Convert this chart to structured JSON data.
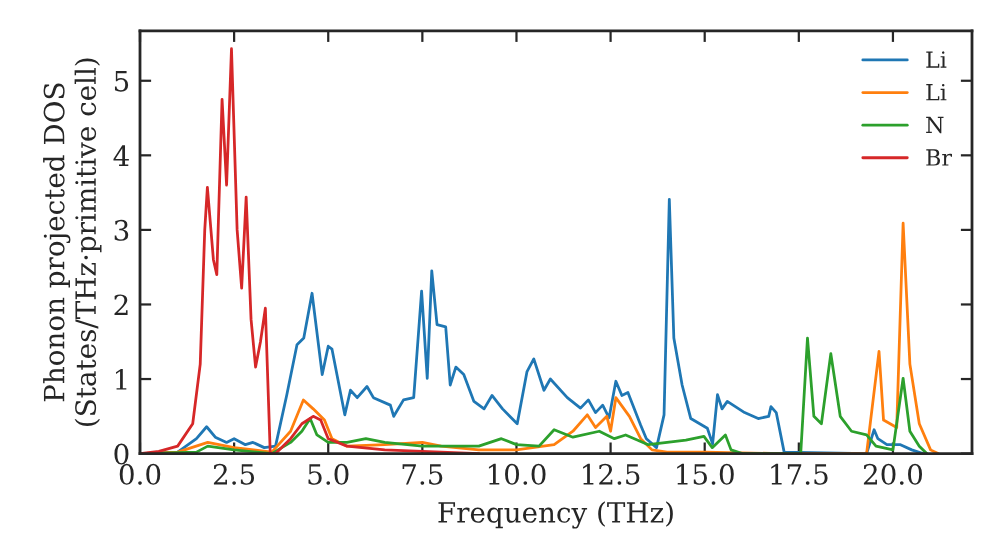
{
  "chart_data": {
    "type": "line",
    "xlabel": "Frequency (THz)",
    "ylabel": "Phonon projected DOS\n(States/THz·primitive cell)",
    "xlim": [
      0,
      22.1
    ],
    "ylim": [
      0,
      5.67
    ],
    "xticks": [
      {
        "value": 0,
        "label": "0.0"
      },
      {
        "value": 2.5,
        "label": "2.5"
      },
      {
        "value": 5,
        "label": "5.0"
      },
      {
        "value": 7.5,
        "label": "7.5"
      },
      {
        "value": 10,
        "label": "10.0"
      },
      {
        "value": 12.5,
        "label": "12.5"
      },
      {
        "value": 15,
        "label": "15.0"
      },
      {
        "value": 17.5,
        "label": "17.5"
      },
      {
        "value": 20,
        "label": "20.0"
      }
    ],
    "yticks": [
      0,
      1,
      2,
      3,
      4,
      5
    ],
    "grid": false,
    "legend": "top right",
    "series": [
      {
        "name": "Li",
        "color": "#1f77b4",
        "x": [
          0,
          1.0,
          1.5,
          1.77,
          2.0,
          2.3,
          2.5,
          2.8,
          3.0,
          3.3,
          3.6,
          3.9,
          4.17,
          4.35,
          4.57,
          4.84,
          5.0,
          5.1,
          5.44,
          5.59,
          5.77,
          6.03,
          6.2,
          6.65,
          6.74,
          7.0,
          7.27,
          7.48,
          7.63,
          7.75,
          7.89,
          8.12,
          8.24,
          8.39,
          8.6,
          8.87,
          9.14,
          9.35,
          9.63,
          10.02,
          10.28,
          10.46,
          10.73,
          10.9,
          11.35,
          11.7,
          11.91,
          12.1,
          12.29,
          12.46,
          12.64,
          12.8,
          12.96,
          13.3,
          13.45,
          13.72,
          13.92,
          14.06,
          14.18,
          14.4,
          14.63,
          15.07,
          15.21,
          15.34,
          15.46,
          15.6,
          16.06,
          16.42,
          16.7,
          16.76,
          16.9,
          17.11,
          19.3,
          19.5,
          19.6,
          19.84,
          20.2,
          20.5,
          20.8
        ],
        "values": [
          0,
          0.02,
          0.2,
          0.36,
          0.22,
          0.15,
          0.2,
          0.12,
          0.15,
          0.08,
          0.1,
          0.79,
          1.46,
          1.55,
          2.15,
          1.06,
          1.44,
          1.4,
          0.52,
          0.85,
          0.75,
          0.9,
          0.75,
          0.65,
          0.5,
          0.72,
          0.75,
          2.18,
          1.01,
          2.45,
          1.73,
          1.7,
          0.92,
          1.16,
          1.06,
          0.7,
          0.6,
          0.78,
          0.6,
          0.4,
          1.1,
          1.27,
          0.85,
          1.0,
          0.75,
          0.61,
          0.72,
          0.55,
          0.65,
          0.48,
          0.97,
          0.78,
          0.82,
          0.38,
          0.2,
          0.08,
          0.52,
          3.41,
          1.55,
          0.92,
          0.47,
          0.34,
          0.13,
          0.79,
          0.6,
          0.7,
          0.55,
          0.47,
          0.5,
          0.63,
          0.55,
          0.02,
          0,
          0.32,
          0.2,
          0.12,
          0.12,
          0.05,
          0
        ]
      },
      {
        "name": "Li",
        "color": "#ff7f0e",
        "x": [
          0,
          1.0,
          1.8,
          2.5,
          3.5,
          4.0,
          4.34,
          4.6,
          4.9,
          5.1,
          5.5,
          6.5,
          7.5,
          8.0,
          9.0,
          10.0,
          11.0,
          11.5,
          11.88,
          12.1,
          12.4,
          12.5,
          12.64,
          13.0,
          13.3,
          13.6,
          14.0,
          15.0,
          17.0,
          19.3,
          19.63,
          19.75,
          20.1,
          20.27,
          20.45,
          20.7,
          21.0,
          21.2
        ],
        "values": [
          0,
          0.02,
          0.15,
          0.08,
          0.02,
          0.3,
          0.72,
          0.6,
          0.45,
          0.2,
          0.1,
          0.12,
          0.15,
          0.1,
          0.05,
          0.05,
          0.12,
          0.3,
          0.52,
          0.35,
          0.5,
          0.3,
          0.75,
          0.5,
          0.2,
          0.05,
          0.02,
          0.02,
          0,
          0,
          1.37,
          0.45,
          0.35,
          3.09,
          1.2,
          0.4,
          0.05,
          0
        ]
      },
      {
        "name": "N",
        "color": "#2ca02c",
        "x": [
          0,
          1.5,
          1.8,
          2.5,
          3.5,
          4.0,
          4.3,
          4.52,
          4.7,
          5.0,
          5.5,
          6.0,
          6.5,
          7.5,
          9.0,
          9.6,
          10.0,
          10.6,
          11.0,
          11.5,
          12.2,
          12.6,
          12.9,
          13.5,
          14.5,
          14.98,
          15.2,
          15.55,
          15.7,
          16.0,
          17.55,
          17.73,
          17.9,
          18.1,
          18.35,
          18.6,
          18.9,
          19.3,
          19.55,
          20.0,
          20.27,
          20.45,
          20.7,
          20.9
        ],
        "values": [
          0,
          0.02,
          0.1,
          0.05,
          0,
          0.15,
          0.3,
          0.47,
          0.25,
          0.15,
          0.15,
          0.2,
          0.15,
          0.1,
          0.1,
          0.2,
          0.12,
          0.1,
          0.32,
          0.22,
          0.3,
          0.2,
          0.25,
          0.12,
          0.18,
          0.23,
          0.08,
          0.25,
          0.05,
          0,
          0,
          1.55,
          0.5,
          0.4,
          1.34,
          0.5,
          0.3,
          0.25,
          0.1,
          0.05,
          1.01,
          0.3,
          0.1,
          0
        ]
      },
      {
        "name": "Br",
        "color": "#d62728",
        "x": [
          0,
          0.5,
          1.0,
          1.4,
          1.6,
          1.72,
          1.79,
          1.95,
          2.04,
          2.18,
          2.3,
          2.43,
          2.58,
          2.7,
          2.82,
          2.95,
          3.07,
          3.2,
          3.33,
          3.46,
          3.6,
          4.0,
          4.3,
          4.6,
          4.8,
          5.0,
          5.5,
          6.5,
          8.0,
          9.0
        ],
        "values": [
          0,
          0.03,
          0.1,
          0.4,
          1.2,
          3.0,
          3.57,
          2.6,
          2.4,
          4.75,
          3.6,
          5.43,
          3.0,
          2.22,
          3.44,
          1.8,
          1.16,
          1.5,
          1.95,
          0,
          0,
          0.2,
          0.4,
          0.5,
          0.45,
          0.2,
          0.1,
          0.05,
          0.02,
          0
        ]
      }
    ]
  }
}
